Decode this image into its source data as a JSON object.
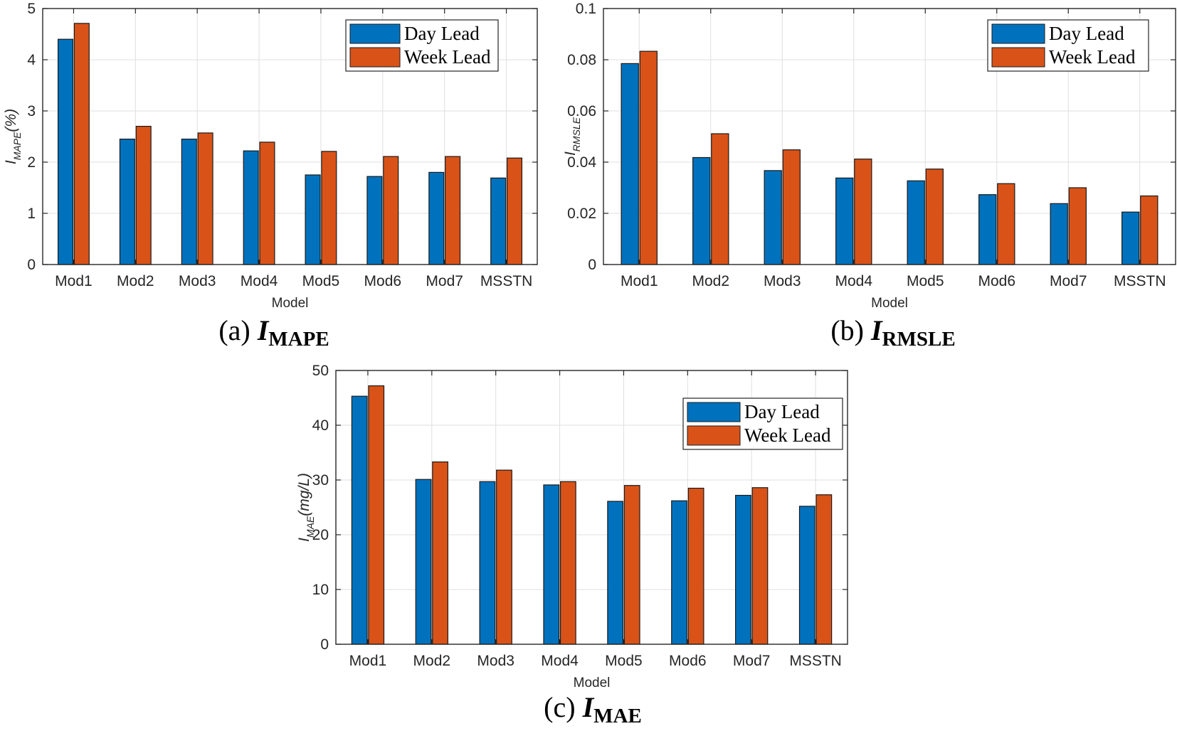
{
  "colors": {
    "day": "#0072BD",
    "week": "#D95319"
  },
  "chart_data": [
    {
      "id": "a",
      "type": "bar",
      "categories": [
        "Mod1",
        "Mod2",
        "Mod3",
        "Mod4",
        "Mod5",
        "Mod6",
        "Mod7",
        "MSSTN"
      ],
      "series": [
        {
          "name": "Day Lead",
          "values": [
            4.4,
            2.45,
            2.45,
            2.22,
            1.75,
            1.72,
            1.8,
            1.69
          ]
        },
        {
          "name": "Week Lead",
          "values": [
            4.71,
            2.7,
            2.57,
            2.39,
            2.21,
            2.11,
            2.11,
            2.08
          ]
        }
      ],
      "ylim": [
        0,
        5
      ],
      "yticks": [
        "0",
        "1",
        "2",
        "3",
        "4",
        "5"
      ],
      "xlabel": "Model",
      "ylabel": {
        "main": "I",
        "sub": "MAPE",
        "suffix": "(%)"
      },
      "caption": {
        "prefix": "(a) ",
        "symbol": "I",
        "sub": "MAPE"
      },
      "legend": "top-right"
    },
    {
      "id": "b",
      "type": "bar",
      "categories": [
        "Mod1",
        "Mod2",
        "Mod3",
        "Mod4",
        "Mod5",
        "Mod6",
        "Mod7",
        "MSSTN"
      ],
      "series": [
        {
          "name": "Day Lead",
          "values": [
            0.0785,
            0.0418,
            0.0367,
            0.0338,
            0.0327,
            0.0273,
            0.0238,
            0.0205
          ]
        },
        {
          "name": "Week Lead",
          "values": [
            0.0833,
            0.0511,
            0.0448,
            0.0412,
            0.0373,
            0.0316,
            0.03,
            0.0268
          ]
        }
      ],
      "ylim": [
        0,
        0.1
      ],
      "yticks": [
        "0",
        "0.02",
        "0.04",
        "0.06",
        "0.08",
        "0.1"
      ],
      "xlabel": "Model",
      "ylabel": {
        "main": "I",
        "sub": "RMSLE",
        "suffix": ""
      },
      "caption": {
        "prefix": "(b) ",
        "symbol": "I",
        "sub": "RMSLE"
      },
      "legend": "top-right"
    },
    {
      "id": "c",
      "type": "bar",
      "categories": [
        "Mod1",
        "Mod2",
        "Mod3",
        "Mod4",
        "Mod5",
        "Mod6",
        "Mod7",
        "MSSTN"
      ],
      "series": [
        {
          "name": "Day Lead",
          "values": [
            45.3,
            30.1,
            29.7,
            29.1,
            26.1,
            26.2,
            27.2,
            25.2
          ]
        },
        {
          "name": "Week Lead",
          "values": [
            47.2,
            33.3,
            31.8,
            29.7,
            29.0,
            28.5,
            28.6,
            27.3
          ]
        }
      ],
      "ylim": [
        0,
        50
      ],
      "yticks": [
        "0",
        "10",
        "20",
        "30",
        "40",
        "50"
      ],
      "xlabel": "Model",
      "ylabel": {
        "main": "I",
        "sub": "MAE",
        "suffix": "(mg/L)"
      },
      "caption": {
        "prefix": "(c) ",
        "symbol": "I",
        "sub": "MAE"
      },
      "legend": "top-right"
    }
  ]
}
